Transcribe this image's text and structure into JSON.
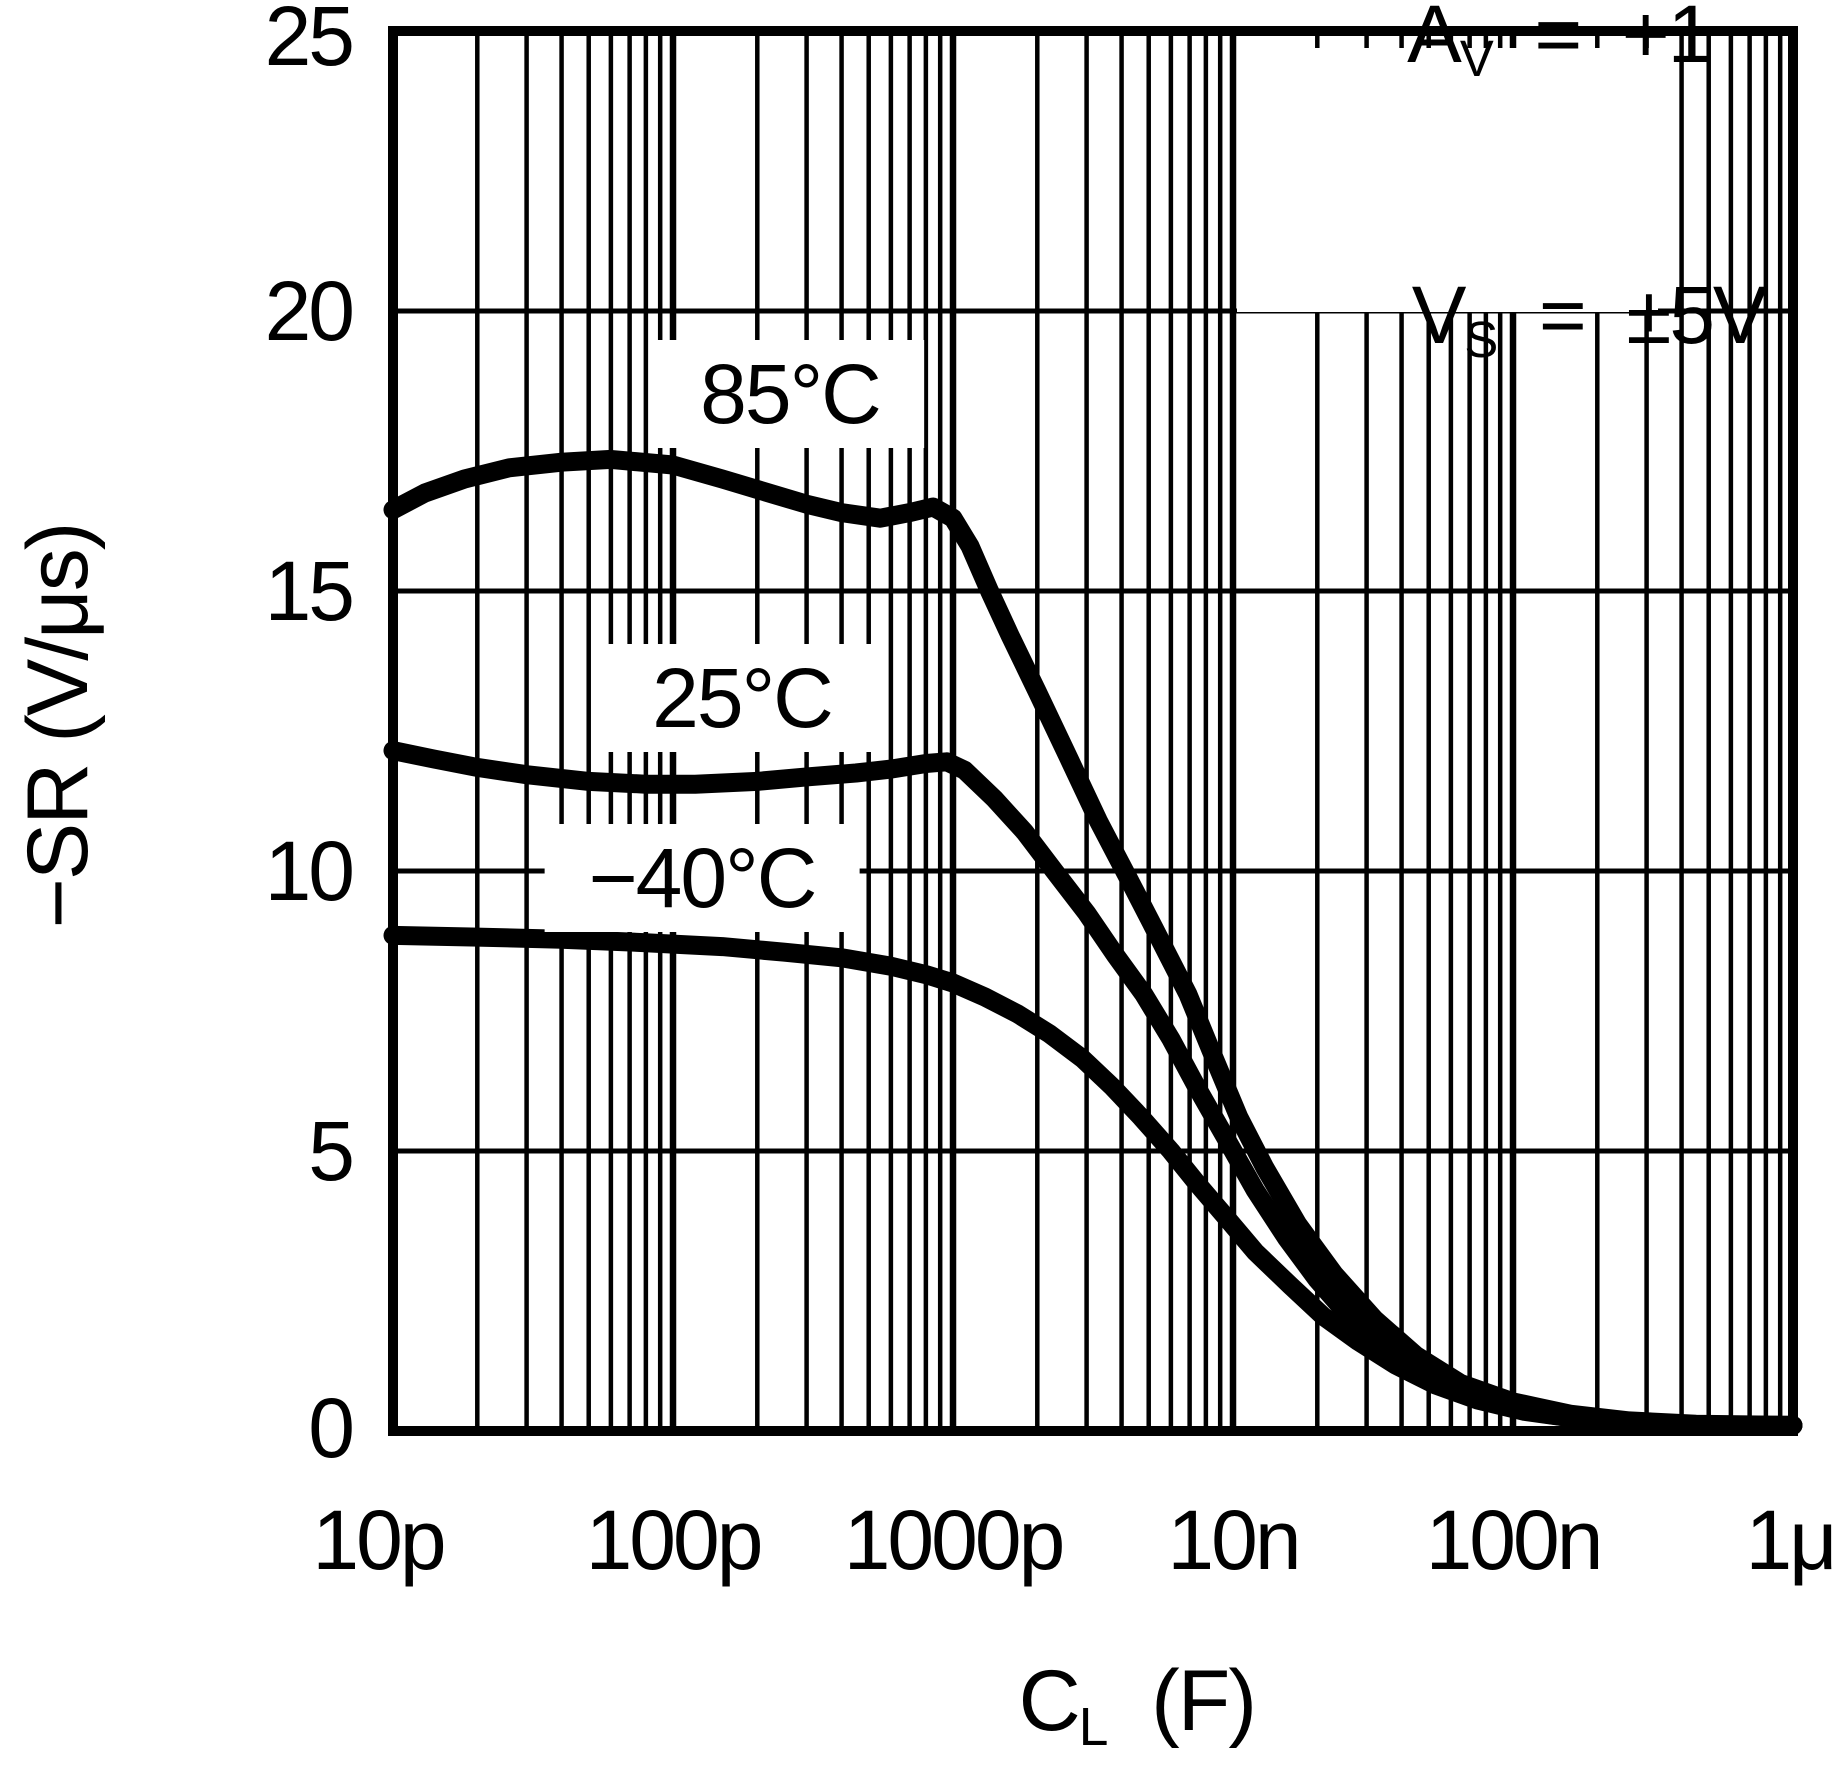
{
  "figure": {
    "y_axis_title": "−SR (V/μs)",
    "x_axis_title": {
      "base": "C",
      "sub": "L",
      "rest": "  (F)"
    },
    "y_ticks": [
      "25",
      "20",
      "15",
      "10",
      "5",
      "0"
    ],
    "x_ticks": [
      "10p",
      "100p",
      "1000p",
      "10n",
      "100n",
      "1μ"
    ],
    "conditions": {
      "line1": {
        "base": "A",
        "sub": "V",
        "rest": "  =  +1"
      },
      "line2": {
        "base": "V",
        "sub": "S",
        "rest": "  =  ±5V"
      }
    },
    "curve_labels": [
      "85°C",
      "25°C",
      "−40°C"
    ]
  },
  "chart_data": {
    "type": "line",
    "title": "",
    "xlabel": "CL (F)",
    "ylabel": "-SR (V/us)",
    "x_scale": "log",
    "xlim": [
      1e-11,
      1e-06
    ],
    "ylim": [
      0,
      25
    ],
    "y_gridline_step": 5,
    "x_decade_labels": [
      "10p",
      "100p",
      "1000p",
      "10n",
      "100n",
      "1u"
    ],
    "grid": "on",
    "legend_position": "inline-curve-labels",
    "conditions": [
      "AV = +1",
      "VS = ±5V"
    ],
    "line_color": "#000000",
    "series": [
      {
        "name": "85°C",
        "points": [
          [
            1e-11,
            16.45
          ],
          [
            1.3e-11,
            16.75
          ],
          [
            1.8e-11,
            17.0
          ],
          [
            2.6e-11,
            17.2
          ],
          [
            4e-11,
            17.3
          ],
          [
            6e-11,
            17.35
          ],
          [
            1e-10,
            17.25
          ],
          [
            1.5e-10,
            17.0
          ],
          [
            2.2e-10,
            16.75
          ],
          [
            3e-10,
            16.55
          ],
          [
            4e-10,
            16.4
          ],
          [
            5.5e-10,
            16.3
          ],
          [
            7e-10,
            16.4
          ],
          [
            8.5e-10,
            16.5
          ],
          [
            1e-09,
            16.3
          ],
          [
            1.15e-09,
            15.8
          ],
          [
            1.35e-09,
            15.0
          ],
          [
            1.6e-09,
            14.2
          ],
          [
            2e-09,
            13.2
          ],
          [
            2.6e-09,
            12.0
          ],
          [
            3.3e-09,
            10.9
          ],
          [
            4.2e-09,
            9.9
          ],
          [
            5.2e-09,
            9.0
          ],
          [
            6.9e-09,
            7.8
          ],
          [
            8.5e-09,
            6.7
          ],
          [
            1.05e-08,
            5.6
          ],
          [
            1.3e-08,
            4.7
          ],
          [
            1.7e-08,
            3.7
          ],
          [
            2.3e-08,
            2.8
          ],
          [
            3.2e-08,
            2.0
          ],
          [
            4.5e-08,
            1.35
          ],
          [
            6.5e-08,
            0.85
          ],
          [
            1e-07,
            0.52
          ],
          [
            1.6e-07,
            0.3
          ],
          [
            2.6e-07,
            0.18
          ],
          [
            4.5e-07,
            0.12
          ],
          [
            1e-06,
            0.1
          ]
        ]
      },
      {
        "name": "25°C",
        "points": [
          [
            1e-11,
            12.15
          ],
          [
            1.4e-11,
            12.0
          ],
          [
            2e-11,
            11.85
          ],
          [
            3e-11,
            11.72
          ],
          [
            5e-11,
            11.6
          ],
          [
            8e-11,
            11.55
          ],
          [
            1.2e-10,
            11.55
          ],
          [
            2e-10,
            11.6
          ],
          [
            3e-10,
            11.68
          ],
          [
            4.5e-10,
            11.75
          ],
          [
            6e-10,
            11.82
          ],
          [
            8e-10,
            11.92
          ],
          [
            9.5e-10,
            11.95
          ],
          [
            1.1e-09,
            11.8
          ],
          [
            1.4e-09,
            11.3
          ],
          [
            1.8e-09,
            10.7
          ],
          [
            2.3e-09,
            10.0
          ],
          [
            3e-09,
            9.25
          ],
          [
            3.8e-09,
            8.5
          ],
          [
            4.8e-09,
            7.8
          ],
          [
            6e-09,
            7.0
          ],
          [
            7.5e-09,
            6.1
          ],
          [
            9.5e-09,
            5.2
          ],
          [
            1.2e-08,
            4.3
          ],
          [
            1.55e-08,
            3.45
          ],
          [
            2e-08,
            2.7
          ],
          [
            2.7e-08,
            1.95
          ],
          [
            3.7e-08,
            1.35
          ],
          [
            5.2e-08,
            0.9
          ],
          [
            7.5e-08,
            0.58
          ],
          [
            1.1e-07,
            0.36
          ],
          [
            1.7e-07,
            0.22
          ],
          [
            2.8e-07,
            0.14
          ],
          [
            5e-07,
            0.1
          ],
          [
            1e-06,
            0.1
          ]
        ]
      },
      {
        "name": "-40°C",
        "points": [
          [
            1e-11,
            8.85
          ],
          [
            2e-11,
            8.82
          ],
          [
            4e-11,
            8.78
          ],
          [
            8e-11,
            8.72
          ],
          [
            1.5e-10,
            8.65
          ],
          [
            2.5e-10,
            8.55
          ],
          [
            4e-10,
            8.45
          ],
          [
            6e-10,
            8.3
          ],
          [
            8e-10,
            8.15
          ],
          [
            1e-09,
            8.0
          ],
          [
            1.3e-09,
            7.75
          ],
          [
            1.7e-09,
            7.45
          ],
          [
            2.2e-09,
            7.1
          ],
          [
            2.9e-09,
            6.65
          ],
          [
            3.7e-09,
            6.15
          ],
          [
            4.7e-09,
            5.6
          ],
          [
            6e-09,
            5.0
          ],
          [
            7.5e-09,
            4.4
          ],
          [
            9.5e-09,
            3.8
          ],
          [
            1.2e-08,
            3.2
          ],
          [
            1.6e-08,
            2.6
          ],
          [
            2.1e-08,
            2.05
          ],
          [
            2.8e-08,
            1.6
          ],
          [
            3.8e-08,
            1.18
          ],
          [
            5.3e-08,
            0.82
          ],
          [
            7.5e-08,
            0.55
          ],
          [
            1.1e-07,
            0.35
          ],
          [
            1.7e-07,
            0.22
          ],
          [
            3e-07,
            0.13
          ],
          [
            5e-07,
            0.1
          ],
          [
            1e-06,
            0.1
          ]
        ]
      }
    ]
  }
}
